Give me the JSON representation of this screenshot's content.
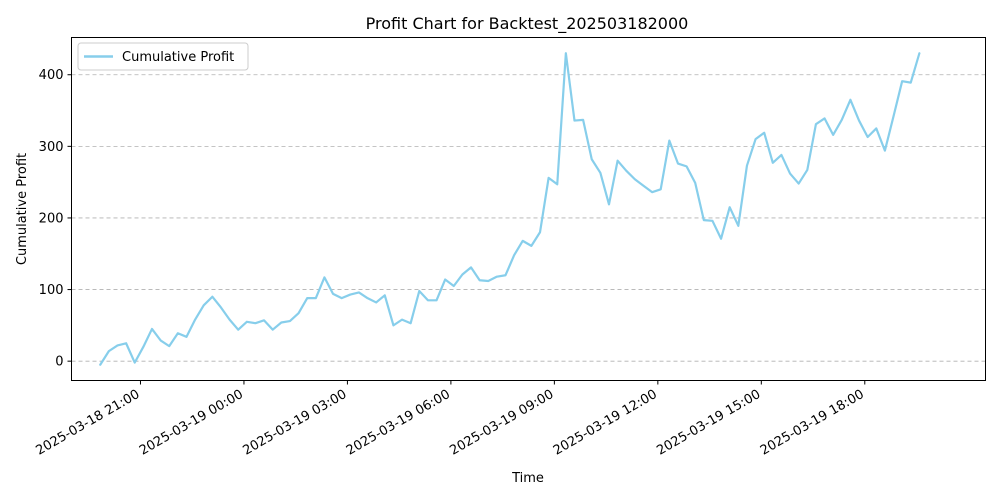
{
  "chart_data": {
    "type": "line",
    "title": "Profit Chart for Backtest_202503182000",
    "xlabel": "Time",
    "ylabel": "Cumulative Profit",
    "x_start": "2025-03-18 19:50",
    "x_step_minutes": 15,
    "xlim": [
      "2025-03-18 19:00",
      "2025-03-19 21:30"
    ],
    "ylim": [
      -27,
      452
    ],
    "yticks": [
      0,
      100,
      200,
      300,
      400
    ],
    "xticks": [
      "2025-03-18 21:00",
      "2025-03-19 00:00",
      "2025-03-19 03:00",
      "2025-03-19 06:00",
      "2025-03-19 09:00",
      "2025-03-19 12:00",
      "2025-03-19 15:00",
      "2025-03-19 18:00"
    ],
    "grid": "y-dashed",
    "legend_position": "top-left",
    "series": [
      {
        "name": "Cumulative Profit",
        "color": "#87ceeb",
        "values": [
          -5,
          14,
          22,
          25,
          -2,
          20,
          45,
          29,
          21,
          39,
          34,
          58,
          78,
          90,
          75,
          58,
          44,
          55,
          53,
          57,
          44,
          54,
          56,
          67,
          88,
          88,
          117,
          94,
          88,
          93,
          96,
          88,
          82,
          92,
          50,
          58,
          53,
          98,
          85,
          85,
          114,
          105,
          121,
          131,
          113,
          112,
          118,
          120,
          148,
          168,
          161,
          180,
          256,
          247,
          430,
          336,
          337,
          282,
          263,
          219,
          280,
          266,
          254,
          245,
          236,
          240,
          308,
          276,
          272,
          249,
          197,
          196,
          171,
          215,
          189,
          273,
          310,
          319,
          277,
          288,
          262,
          248,
          267,
          331,
          339,
          316,
          337,
          365,
          336,
          313,
          325,
          294,
          342,
          391,
          389,
          430
        ]
      }
    ]
  }
}
